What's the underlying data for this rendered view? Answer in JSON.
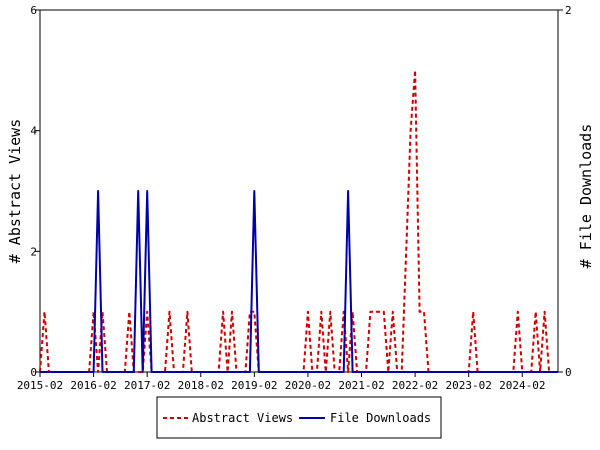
{
  "chart_data": {
    "type": "line",
    "title": "",
    "x_tick_labels": [
      "2015-02",
      "2016-02",
      "2017-02",
      "2018-02",
      "2019-02",
      "2020-02",
      "2021-02",
      "2022-02",
      "2023-02",
      "2024-02"
    ],
    "x_range": [
      "2015-02",
      "2024-10"
    ],
    "y_left": {
      "label": "# Abstract Views",
      "ticks": [
        "0",
        "2",
        "4",
        "6"
      ],
      "range": [
        0,
        6
      ]
    },
    "y_right": {
      "label": "# File Downloads",
      "ticks": [
        "0",
        "2"
      ],
      "range": [
        0,
        2
      ]
    },
    "grid": false,
    "legend_placement": "bottom-center",
    "series": [
      {
        "name": "Abstract Views",
        "axis": "left",
        "color": "#cc0000",
        "style": "dashed",
        "points": [
          [
            "2015-02",
            0
          ],
          [
            "2015-03",
            1
          ],
          [
            "2015-04",
            0
          ],
          [
            "2016-01",
            0
          ],
          [
            "2016-02",
            1
          ],
          [
            "2016-03",
            0
          ],
          [
            "2016-04",
            1
          ],
          [
            "2016-05",
            0
          ],
          [
            "2016-09",
            0
          ],
          [
            "2016-10",
            1
          ],
          [
            "2016-11",
            0
          ],
          [
            "2017-01",
            0
          ],
          [
            "2017-02",
            1
          ],
          [
            "2017-03",
            0
          ],
          [
            "2017-06",
            0
          ],
          [
            "2017-07",
            1
          ],
          [
            "2017-08",
            0
          ],
          [
            "2017-10",
            0
          ],
          [
            "2017-11",
            1
          ],
          [
            "2017-12",
            0
          ],
          [
            "2018-06",
            0
          ],
          [
            "2018-07",
            1
          ],
          [
            "2018-08",
            0
          ],
          [
            "2018-09",
            1
          ],
          [
            "2018-10",
            0
          ],
          [
            "2018-12",
            0
          ],
          [
            "2019-01",
            1
          ],
          [
            "2019-02",
            1
          ],
          [
            "2019-03",
            0
          ],
          [
            "2020-01",
            0
          ],
          [
            "2020-02",
            1
          ],
          [
            "2020-03",
            0
          ],
          [
            "2020-04",
            0
          ],
          [
            "2020-05",
            1
          ],
          [
            "2020-06",
            0
          ],
          [
            "2020-07",
            1
          ],
          [
            "2020-08",
            0
          ],
          [
            "2020-09",
            0
          ],
          [
            "2020-10",
            1
          ],
          [
            "2020-11",
            0
          ],
          [
            "2020-12",
            1
          ],
          [
            "2021-01",
            0
          ],
          [
            "2021-03",
            0
          ],
          [
            "2021-04",
            1
          ],
          [
            "2021-05",
            1
          ],
          [
            "2021-06",
            1
          ],
          [
            "2021-07",
            1
          ],
          [
            "2021-08",
            0
          ],
          [
            "2021-09",
            1
          ],
          [
            "2021-10",
            0
          ],
          [
            "2021-11",
            0
          ],
          [
            "2021-12",
            2
          ],
          [
            "2022-01",
            4
          ],
          [
            "2022-02",
            5
          ],
          [
            "2022-03",
            1
          ],
          [
            "2022-04",
            1
          ],
          [
            "2022-05",
            0
          ],
          [
            "2023-02",
            0
          ],
          [
            "2023-03",
            1
          ],
          [
            "2023-04",
            0
          ],
          [
            "2023-12",
            0
          ],
          [
            "2024-01",
            1
          ],
          [
            "2024-02",
            0
          ],
          [
            "2024-04",
            0
          ],
          [
            "2024-05",
            1
          ],
          [
            "2024-06",
            0
          ],
          [
            "2024-07",
            1
          ],
          [
            "2024-08",
            0
          ],
          [
            "2024-10",
            0
          ]
        ]
      },
      {
        "name": "File Downloads",
        "axis": "right",
        "color": "#0000aa",
        "style": "solid",
        "points": [
          [
            "2015-02",
            0
          ],
          [
            "2016-02",
            0
          ],
          [
            "2016-03",
            1
          ],
          [
            "2016-04",
            0
          ],
          [
            "2016-11",
            0
          ],
          [
            "2016-12",
            1
          ],
          [
            "2017-01",
            0
          ],
          [
            "2017-02",
            1
          ],
          [
            "2017-03",
            0
          ],
          [
            "2019-01",
            0
          ],
          [
            "2019-02",
            1
          ],
          [
            "2019-03",
            0
          ],
          [
            "2020-10",
            0
          ],
          [
            "2020-11",
            1
          ],
          [
            "2020-12",
            0
          ],
          [
            "2024-10",
            0
          ]
        ]
      }
    ]
  }
}
